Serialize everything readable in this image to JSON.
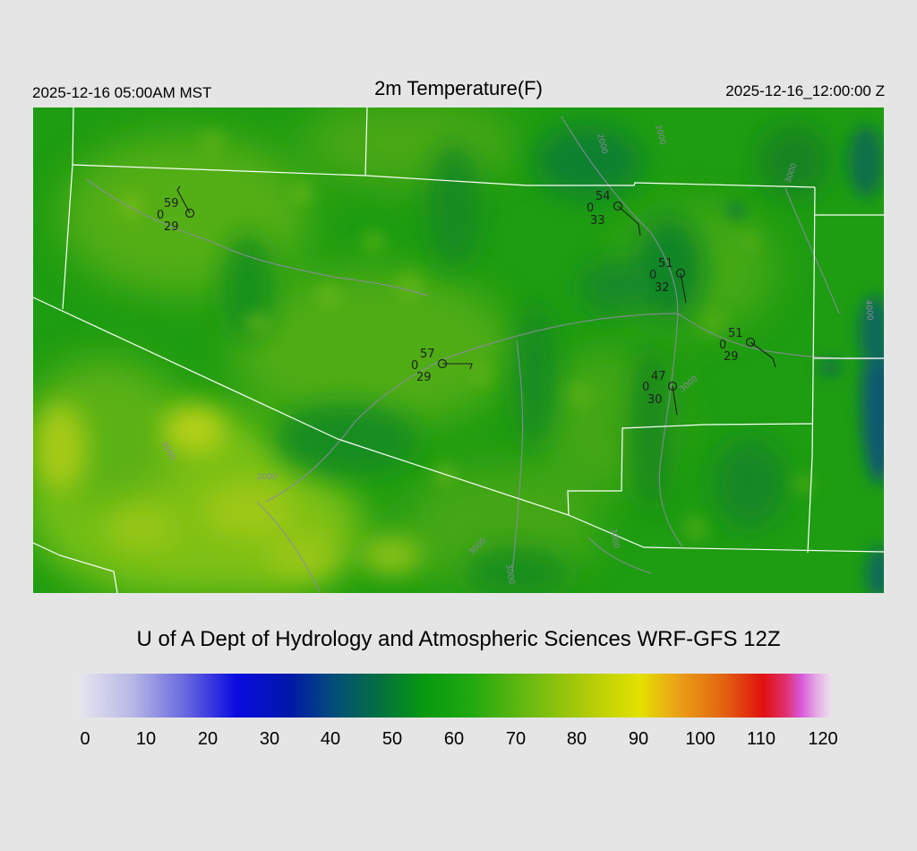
{
  "header": {
    "local_time": "2025-12-16 05:00AM MST",
    "title": "2m Temperature(F)",
    "utc_time": "2025-12-16_12:00:00 Z"
  },
  "credit": "U of A Dept of Hydrology and Atmospheric Sciences WRF-GFS 12Z",
  "colorbar": {
    "ticks": [
      "0",
      "10",
      "20",
      "30",
      "40",
      "50",
      "60",
      "70",
      "80",
      "90",
      "100",
      "110",
      "120"
    ]
  },
  "stations": [
    {
      "temp": "59",
      "cloud": "0",
      "dew": "29"
    },
    {
      "temp": "54",
      "cloud": "0",
      "dew": "33"
    },
    {
      "temp": "51",
      "cloud": "0",
      "dew": "32"
    },
    {
      "temp": "57",
      "cloud": "0",
      "dew": "29"
    },
    {
      "temp": "51",
      "cloud": "0",
      "dew": "29"
    },
    {
      "temp": "47",
      "cloud": "0",
      "dew": "30"
    }
  ],
  "contour_labels": [
    "2000",
    "2000",
    "3000",
    "4000",
    "3000",
    "2000",
    "2000",
    "3000",
    "3000",
    "3000"
  ],
  "colors": {
    "background": "#e5e5e5",
    "map_base": "#1c9a12",
    "county_lines": "#ffffff",
    "roads": "#8c8ca0"
  }
}
